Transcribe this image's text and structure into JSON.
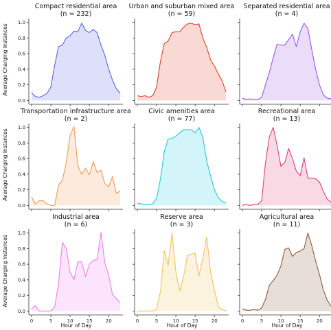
{
  "figure": {
    "xlabel": "Hour of Day",
    "ylabel": "Average Charging Instances"
  },
  "chart_data": [
    {
      "type": "area",
      "title": "Compact residential area",
      "subtitle": "(n = 232)",
      "color": "#5b62e0",
      "x": [
        0,
        1,
        2,
        3,
        4,
        5,
        6,
        7,
        8,
        9,
        10,
        11,
        12,
        13,
        14,
        15,
        16,
        17,
        18,
        19,
        20,
        21,
        22,
        23
      ],
      "values": [
        0.1,
        0.05,
        0.04,
        0.06,
        0.09,
        0.17,
        0.45,
        0.69,
        0.71,
        0.8,
        0.83,
        0.89,
        0.88,
        0.99,
        0.9,
        0.87,
        0.91,
        0.87,
        0.71,
        0.58,
        0.4,
        0.26,
        0.15,
        0.09
      ],
      "xlim": [
        -0.7,
        23.7
      ],
      "ylim": [
        -0.05,
        1.05
      ],
      "yticks": [
        0.0,
        0.2,
        0.4,
        0.6,
        0.8,
        1.0
      ],
      "ytick_labels": [
        "0.0",
        "0.2",
        "0.4",
        "0.6",
        "0.8",
        "1.0"
      ]
    },
    {
      "type": "area",
      "title": "Urban and suburban mixed area",
      "subtitle": "(n = 59)",
      "color": "#e0402a",
      "x": [
        0,
        1,
        2,
        3,
        4,
        5,
        6,
        7,
        8,
        9,
        10,
        11,
        12,
        13,
        14,
        15,
        16,
        17,
        18,
        19,
        20,
        21,
        22,
        23
      ],
      "values": [
        0.06,
        0.05,
        0.06,
        0.04,
        0.06,
        0.17,
        0.5,
        0.73,
        0.76,
        0.87,
        0.88,
        0.88,
        0.94,
        0.98,
        0.99,
        0.97,
        0.98,
        0.8,
        0.68,
        0.52,
        0.44,
        0.34,
        0.25,
        0.11
      ],
      "xlim": [
        -0.7,
        23.7
      ],
      "ylim": [
        -0.05,
        1.05
      ],
      "yticks": [
        0.0,
        0.2,
        0.4,
        0.6,
        0.8,
        1.0
      ],
      "ytick_labels": []
    },
    {
      "type": "area",
      "title": "Separated residential area",
      "subtitle": "(n = 4)",
      "color": "#9b55e6",
      "x": [
        0,
        1,
        2,
        3,
        4,
        5,
        6,
        7,
        8,
        9,
        10,
        11,
        12,
        13,
        14,
        15,
        16,
        17,
        18,
        19,
        20,
        21,
        22,
        23
      ],
      "values": [
        0.03,
        0.01,
        0.02,
        0.01,
        0.01,
        0.04,
        0.2,
        0.36,
        0.55,
        0.72,
        0.71,
        0.71,
        0.78,
        0.85,
        0.69,
        0.88,
        0.99,
        0.92,
        0.65,
        0.4,
        0.2,
        0.07,
        0.03,
        0.02
      ],
      "xlim": [
        -0.7,
        23.7
      ],
      "ylim": [
        -0.05,
        1.05
      ],
      "yticks": [
        0.0,
        0.2,
        0.4,
        0.6,
        0.8,
        1.0
      ],
      "ytick_labels": []
    },
    {
      "type": "area",
      "title": "Transportation infrastructure area",
      "subtitle": "(n = 2)",
      "color": "#f09a52",
      "x": [
        0,
        1,
        2,
        3,
        4,
        5,
        6,
        7,
        8,
        9,
        10,
        11,
        12,
        13,
        14,
        15,
        16,
        17,
        18,
        19,
        20,
        21,
        22,
        23
      ],
      "values": [
        0.11,
        0.02,
        0.06,
        0.06,
        0.02,
        0.0,
        0.0,
        0.26,
        0.32,
        0.55,
        0.9,
        1.01,
        0.51,
        0.4,
        0.48,
        0.39,
        0.56,
        0.42,
        0.45,
        0.28,
        0.24,
        0.37,
        0.15,
        0.19
      ],
      "xlim": [
        -0.7,
        23.7
      ],
      "ylim": [
        -0.05,
        1.05
      ],
      "yticks": [
        0.0,
        0.2,
        0.4,
        0.6,
        0.8,
        1.0
      ],
      "ytick_labels": [
        "0.0",
        "0.2",
        "0.4",
        "0.6",
        "0.8",
        "1.0"
      ]
    },
    {
      "type": "area",
      "title": "Civic amenities area",
      "subtitle": "(n = 77)",
      "color": "#22cadc",
      "x": [
        0,
        1,
        2,
        3,
        4,
        5,
        6,
        7,
        8,
        9,
        10,
        11,
        12,
        13,
        14,
        15,
        16,
        17,
        18,
        19,
        20,
        21,
        22,
        23
      ],
      "values": [
        0.03,
        0.02,
        0.01,
        0.01,
        0.02,
        0.09,
        0.34,
        0.69,
        0.85,
        0.86,
        0.89,
        0.93,
        0.97,
        0.97,
        0.97,
        0.93,
        1.0,
        0.87,
        0.57,
        0.38,
        0.2,
        0.1,
        0.05,
        0.03
      ],
      "xlim": [
        -0.7,
        23.7
      ],
      "ylim": [
        -0.05,
        1.05
      ],
      "yticks": [
        0.0,
        0.2,
        0.4,
        0.6,
        0.8,
        1.0
      ],
      "ytick_labels": []
    },
    {
      "type": "area",
      "title": "Recreational area",
      "subtitle": "(n = 13)",
      "color": "#e0407a",
      "x": [
        0,
        1,
        2,
        3,
        4,
        5,
        6,
        7,
        8,
        9,
        10,
        11,
        12,
        13,
        14,
        15,
        16,
        17,
        18,
        19,
        20,
        21,
        22,
        23
      ],
      "values": [
        0.0,
        0.01,
        0.0,
        0.01,
        0.01,
        0.06,
        0.55,
        0.88,
        1.0,
        0.77,
        0.5,
        0.55,
        0.73,
        0.6,
        0.44,
        0.38,
        0.61,
        0.35,
        0.35,
        0.34,
        0.3,
        0.18,
        0.08,
        0.04
      ],
      "xlim": [
        -0.7,
        23.7
      ],
      "ylim": [
        -0.05,
        1.05
      ],
      "yticks": [
        0.0,
        0.2,
        0.4,
        0.6,
        0.8,
        1.0
      ],
      "ytick_labels": []
    },
    {
      "type": "area",
      "title": "Industrial area",
      "subtitle": "(n = 6)",
      "color": "#ee7ef0",
      "x": [
        0,
        1,
        2,
        3,
        4,
        5,
        6,
        7,
        8,
        9,
        10,
        11,
        12,
        13,
        14,
        15,
        16,
        17,
        18,
        19,
        20,
        21,
        22,
        23
      ],
      "values": [
        0.03,
        0.07,
        0.0,
        0.0,
        0.0,
        0.0,
        0.05,
        0.35,
        0.88,
        0.8,
        0.5,
        0.4,
        0.63,
        0.63,
        0.44,
        0.6,
        0.65,
        0.66,
        1.01,
        0.62,
        0.46,
        0.21,
        0.16,
        0.1
      ],
      "xlim": [
        -0.7,
        23.7
      ],
      "ylim": [
        -0.05,
        1.05
      ],
      "yticks": [
        0.0,
        0.2,
        0.4,
        0.6,
        0.8,
        1.0
      ],
      "ytick_labels": [
        "0.0",
        "0.2",
        "0.4",
        "0.6",
        "0.8",
        "1.0"
      ],
      "xticks": [
        0,
        5,
        10,
        15,
        20
      ],
      "xtick_labels": [
        "0",
        "5",
        "10",
        "15",
        "20"
      ]
    },
    {
      "type": "area",
      "title": "Reserve area",
      "subtitle": "(n = 3)",
      "color": "#f2c25a",
      "x": [
        0,
        1,
        2,
        3,
        4,
        5,
        6,
        7,
        8,
        9,
        10,
        11,
        12,
        13,
        14,
        15,
        16,
        17,
        18,
        19,
        20,
        21,
        22,
        23
      ],
      "values": [
        0.0,
        0.0,
        0.0,
        0.0,
        0.0,
        0.03,
        0.25,
        0.77,
        0.59,
        1.0,
        0.5,
        0.26,
        0.44,
        0.71,
        0.73,
        0.74,
        0.45,
        0.68,
        0.95,
        0.5,
        0.27,
        0.06,
        0.02,
        0.0
      ],
      "xlim": [
        -0.7,
        23.7
      ],
      "ylim": [
        -0.05,
        1.05
      ],
      "yticks": [
        0.0,
        0.2,
        0.4,
        0.6,
        0.8,
        1.0
      ],
      "ytick_labels": [],
      "xticks": [
        0,
        5,
        10,
        15,
        20
      ],
      "xtick_labels": [
        "0",
        "5",
        "10",
        "15",
        "20"
      ]
    },
    {
      "type": "area",
      "title": "Agricultural area",
      "subtitle": "(n = 11)",
      "color": "#8b5a3c",
      "x": [
        0,
        1,
        2,
        3,
        4,
        5,
        6,
        7,
        8,
        9,
        10,
        11,
        12,
        13,
        14,
        15,
        16,
        17,
        18,
        19,
        20,
        21,
        22,
        23
      ],
      "values": [
        0.03,
        0.01,
        0.01,
        0.02,
        0.01,
        0.04,
        0.15,
        0.33,
        0.39,
        0.46,
        0.58,
        0.79,
        0.81,
        0.7,
        0.75,
        0.77,
        0.8,
        1.0,
        0.84,
        0.64,
        0.47,
        0.27,
        0.14,
        0.06
      ],
      "xlim": [
        -0.7,
        23.7
      ],
      "ylim": [
        -0.05,
        1.05
      ],
      "yticks": [
        0.0,
        0.2,
        0.4,
        0.6,
        0.8,
        1.0
      ],
      "ytick_labels": [],
      "xticks": [
        0,
        5,
        10,
        15,
        20
      ],
      "xtick_labels": [
        "0",
        "5",
        "10",
        "15",
        "20"
      ]
    }
  ]
}
